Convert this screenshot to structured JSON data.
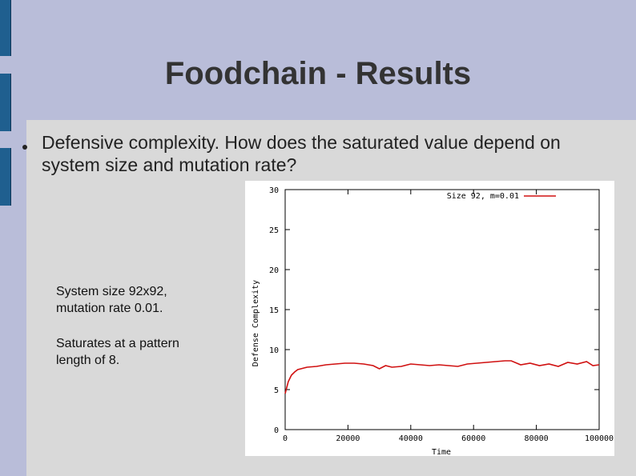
{
  "slide": {
    "title": "Foodchain - Results",
    "bullet": "Defensive complexity. How does the saturated value depend on system size and mutation rate?",
    "caption1_line1": "System size 92x92,",
    "caption1_line2": "mutation rate 0.01.",
    "caption2_line1": "Saturates at a pattern",
    "caption2_line2": "length of 8."
  },
  "colors": {
    "background": "#b9bdd9",
    "panel": "#d9d9d9",
    "accent_bar": "#1f5f8f",
    "series": "#d01010"
  },
  "chart_data": {
    "type": "line",
    "title": "",
    "xlabel": "Time",
    "ylabel": "Defense Complexity",
    "xlim": [
      0,
      100000
    ],
    "ylim": [
      0,
      30
    ],
    "xticks": [
      0,
      20000,
      40000,
      60000,
      80000,
      100000
    ],
    "yticks": [
      0,
      5,
      10,
      15,
      20,
      25,
      30
    ],
    "legend_position": "top-right",
    "series": [
      {
        "name": "Size 92, m=0.01",
        "x": [
          0,
          1000,
          2000,
          3000,
          4000,
          5000,
          7000,
          10000,
          13000,
          16000,
          19000,
          22000,
          25000,
          28000,
          30000,
          32000,
          34000,
          37000,
          40000,
          43000,
          46000,
          49000,
          52000,
          55000,
          58000,
          61000,
          64000,
          67000,
          70000,
          72000,
          75000,
          78000,
          81000,
          84000,
          87000,
          90000,
          93000,
          96000,
          98000,
          100000
        ],
        "values": [
          4.5,
          6.0,
          6.8,
          7.2,
          7.5,
          7.6,
          7.8,
          7.9,
          8.1,
          8.2,
          8.3,
          8.3,
          8.2,
          8.0,
          7.6,
          8.0,
          7.8,
          7.9,
          8.2,
          8.1,
          8.0,
          8.1,
          8.0,
          7.9,
          8.2,
          8.3,
          8.4,
          8.5,
          8.6,
          8.6,
          8.1,
          8.3,
          8.0,
          8.2,
          7.9,
          8.4,
          8.2,
          8.5,
          8.0,
          8.1
        ]
      }
    ]
  }
}
